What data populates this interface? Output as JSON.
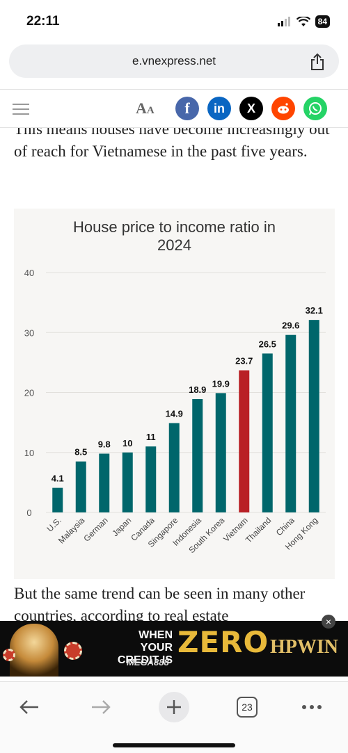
{
  "status_bar": {
    "time": "22:11",
    "battery": "84"
  },
  "browser": {
    "url": "e.vnexpress.net",
    "tabs_count": "23"
  },
  "site_toolbar": {
    "text_size_label": "A",
    "text_size_small": "A"
  },
  "article": {
    "para_before": "This means houses have become increasingly out of reach for Vietnamese in the past five years.",
    "para_after": "But the same trend can be seen in many other countries, according to real estate"
  },
  "chart_data": {
    "type": "bar",
    "title": "House price to income ratio in 2024",
    "categories": [
      "U.S.",
      "Malaysia",
      "German",
      "Japan",
      "Canada",
      "Singapore",
      "Indonesia",
      "South Korea",
      "Vietnam",
      "Thailand",
      "China",
      "Hong Kong"
    ],
    "values": [
      4.1,
      8.5,
      9.8,
      10,
      11,
      14.9,
      18.9,
      19.9,
      23.7,
      26.5,
      29.6,
      32.1
    ],
    "value_labels": [
      "4.1",
      "8.5",
      "9.8",
      "10",
      "11",
      "14.9",
      "18.9",
      "19.9",
      "23.7",
      "26.5",
      "29.6",
      "32.1"
    ],
    "highlight": "Vietnam",
    "yticks": [
      0,
      10,
      20,
      30,
      40
    ],
    "ylim": [
      0,
      40
    ],
    "grid": true,
    "colors": {
      "bar": "#00666b",
      "highlight": "#b92025",
      "grid": "#e2e0dc"
    }
  },
  "ad": {
    "line1": "WHEN YOUR",
    "line2": "CREDIT IS",
    "big": "ZERO",
    "brand": "MEGA888",
    "logo": "HPWIN",
    "close": "×"
  }
}
